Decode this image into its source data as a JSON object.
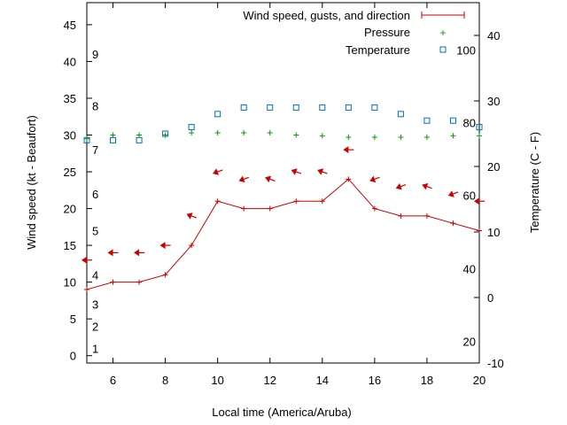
{
  "chart_data": {
    "type": "line",
    "xlabel": "Local time (America/Aruba)",
    "ylabel_left": "Wind speed (kt - Beaufort)",
    "ylabel_right": "Temperature (C - F)",
    "xlim": [
      5,
      20
    ],
    "ylim": [
      -1,
      48
    ],
    "x_ticks": [
      6,
      8,
      10,
      12,
      14,
      16,
      18,
      20
    ],
    "y_ticks_left": [
      0,
      5,
      10,
      15,
      20,
      25,
      30,
      35,
      40,
      45
    ],
    "y2lim": [
      -10,
      45
    ],
    "y2_ticks": [
      -10,
      0,
      10,
      20,
      30,
      40
    ],
    "beaufort_labels": [
      {
        "label": "1",
        "y": 1
      },
      {
        "label": "2",
        "y": 4
      },
      {
        "label": "3",
        "y": 7
      },
      {
        "label": "4",
        "y": 11
      },
      {
        "label": "5",
        "y": 17
      },
      {
        "label": "6",
        "y": 22
      },
      {
        "label": "7",
        "y": 28
      },
      {
        "label": "8",
        "y": 34
      },
      {
        "label": "9",
        "y": 41
      }
    ],
    "fahrenheit_labels": [
      {
        "label": "20",
        "t": -6.7
      },
      {
        "label": "40",
        "t": 4.4
      },
      {
        "label": "60",
        "t": 15.6
      },
      {
        "label": "80",
        "t": 26.7
      },
      {
        "label": "100",
        "t": 37.8
      }
    ],
    "legend_position": "top-right",
    "series": [
      {
        "name": "Wind speed, gusts, and direction",
        "color": "#cc0000",
        "x": [
          5,
          6,
          7,
          8,
          9,
          10,
          11,
          12,
          13,
          14,
          15,
          16,
          17,
          18,
          19,
          20
        ],
        "values": [
          9,
          10,
          10,
          11,
          15,
          21,
          20,
          20,
          21,
          21,
          24,
          20,
          19,
          19,
          18,
          17
        ]
      },
      {
        "name": "Pressure",
        "color": "#00a000",
        "x": [
          5,
          6,
          7,
          8,
          9,
          10,
          11,
          12,
          13,
          14,
          15,
          16,
          17,
          18,
          19,
          20
        ],
        "values": [
          29.5,
          30,
          30,
          30,
          30.3,
          30.3,
          30.3,
          30.3,
          30,
          29.9,
          29.7,
          29.7,
          29.7,
          29.7,
          29.9,
          29.9
        ]
      },
      {
        "name": "Temperature",
        "color": "#0070c0",
        "axis": "right",
        "x": [
          5,
          6,
          7,
          8,
          9,
          10,
          11,
          12,
          13,
          14,
          15,
          16,
          17,
          18,
          19,
          20
        ],
        "values": [
          24,
          24,
          24,
          25,
          26,
          28,
          29,
          29,
          29,
          29,
          29,
          29,
          28,
          27,
          27,
          26
        ]
      }
    ],
    "gusts": [
      {
        "x": 5,
        "y": 13,
        "dir_deg": 0
      },
      {
        "x": 6,
        "y": 14,
        "dir_deg": 0
      },
      {
        "x": 7,
        "y": 14,
        "dir_deg": 0
      },
      {
        "x": 8,
        "y": 15,
        "dir_deg": 0
      },
      {
        "x": 9,
        "y": 19,
        "dir_deg": 20
      },
      {
        "x": 10,
        "y": 25,
        "dir_deg": -20
      },
      {
        "x": 11,
        "y": 24,
        "dir_deg": -20
      },
      {
        "x": 12,
        "y": 24,
        "dir_deg": 20
      },
      {
        "x": 13,
        "y": 25,
        "dir_deg": 20
      },
      {
        "x": 14,
        "y": 25,
        "dir_deg": 20
      },
      {
        "x": 15,
        "y": 28,
        "dir_deg": 0
      },
      {
        "x": 16,
        "y": 24,
        "dir_deg": -20
      },
      {
        "x": 17,
        "y": 23,
        "dir_deg": -20
      },
      {
        "x": 18,
        "y": 23,
        "dir_deg": 20
      },
      {
        "x": 19,
        "y": 22,
        "dir_deg": -20
      },
      {
        "x": 20,
        "y": 21,
        "dir_deg": 0
      }
    ]
  }
}
